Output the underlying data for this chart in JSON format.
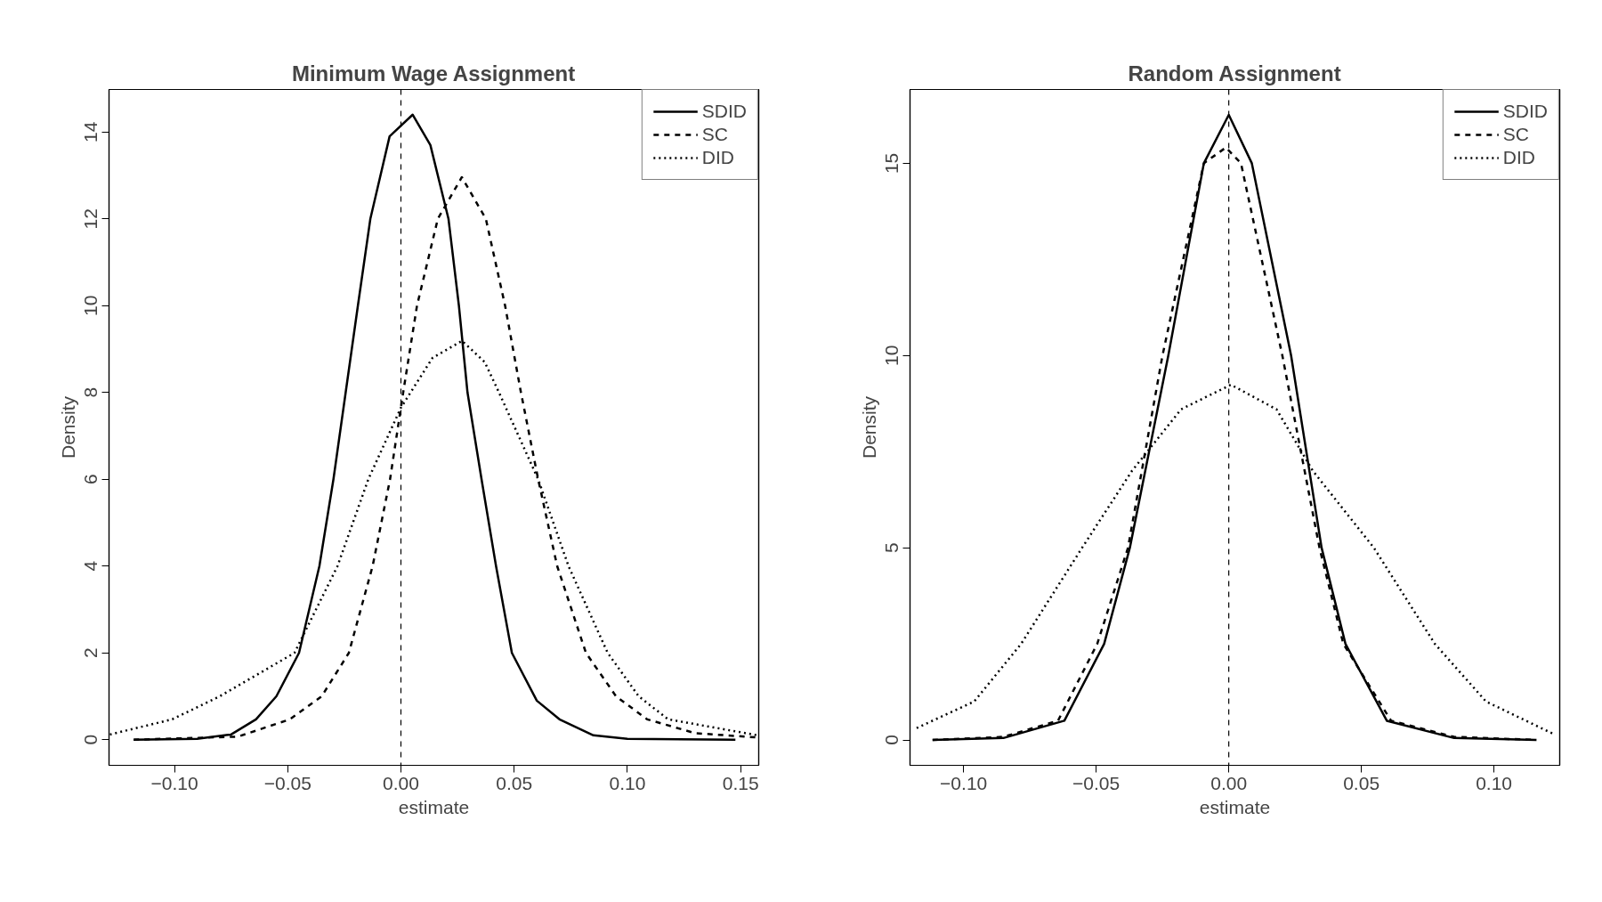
{
  "chart_data": [
    {
      "type": "line",
      "title": "Minimum Wage Assignment",
      "xlabel": "estimate",
      "ylabel": "Density",
      "xlim": [
        -0.1289,
        0.158
      ],
      "ylim": [
        -0.59,
        14.98
      ],
      "xticks": [
        {
          "value": -0.1,
          "label": "−0.10"
        },
        {
          "value": -0.05,
          "label": "−0.05"
        },
        {
          "value": 0,
          "label": "0.00"
        },
        {
          "value": 0.05,
          "label": "0.05"
        },
        {
          "value": 0.1,
          "label": "0.10"
        },
        {
          "value": 0.15,
          "label": "0.15"
        }
      ],
      "yticks": [
        0,
        2,
        4,
        6,
        8,
        10,
        12,
        14
      ],
      "grid": false,
      "legend": "top right",
      "marker": "none",
      "ref_lines": [
        {
          "axis": "x",
          "value": 0,
          "line_style": "dashed",
          "color": "#000000"
        }
      ],
      "series": [
        {
          "name": "SDID",
          "color": "#000000",
          "line_style": "solid",
          "x": [
            -0.118,
            -0.09,
            -0.075,
            -0.064,
            -0.055,
            -0.045,
            -0.036,
            -0.0298,
            -0.0244,
            -0.019,
            -0.0135,
            -0.005,
            0.0052,
            0.013,
            0.021,
            0.0256,
            0.0294,
            0.0356,
            0.042,
            0.049,
            0.06,
            0.07,
            0.085,
            0.1,
            0.1477
          ],
          "values": [
            0,
            0.02,
            0.12,
            0.47,
            1.0,
            2.0,
            4.0,
            6.0,
            8.0,
            10.0,
            12.0,
            13.9,
            14.4,
            13.7,
            12.0,
            10.0,
            8.0,
            6.0,
            4.0,
            2.0,
            0.9,
            0.47,
            0.1,
            0.02,
            0
          ]
        },
        {
          "name": "SC",
          "color": "#000000",
          "line_style": "dashed",
          "x": [
            -0.118,
            -0.072,
            -0.049,
            -0.035,
            -0.023,
            -0.0125,
            -0.0048,
            0.001,
            0.0071,
            0.0163,
            0.0269,
            0.0375,
            0.046,
            0.053,
            0.0606,
            0.069,
            0.0817,
            0.095,
            0.1087,
            0.13,
            0.1577
          ],
          "values": [
            0,
            0.07,
            0.47,
            1.0,
            2.0,
            4.0,
            6.0,
            8.0,
            10.0,
            12.0,
            12.96,
            12.0,
            10.0,
            8.0,
            6.0,
            4.0,
            2.0,
            1.0,
            0.47,
            0.15,
            0.05
          ]
        },
        {
          "name": "DID",
          "color": "#000000",
          "line_style": "dotted",
          "x": [
            -0.1285,
            -0.101,
            -0.08,
            -0.047,
            -0.028,
            -0.0144,
            0,
            0.014,
            0.027,
            0.037,
            0.0433,
            0.0606,
            0.074,
            0.0913,
            0.105,
            0.118,
            0.1577
          ],
          "values": [
            0.12,
            0.47,
            1.0,
            2.0,
            4.0,
            6.0,
            7.65,
            8.8,
            9.19,
            8.7,
            8.0,
            6.0,
            4.0,
            2.0,
            1.0,
            0.47,
            0.1
          ]
        }
      ]
    },
    {
      "type": "line",
      "title": "Random Assignment",
      "xlabel": "estimate",
      "ylabel": "Density",
      "xlim": [
        -0.1202,
        0.1248
      ],
      "ylim": [
        -0.66,
        16.92
      ],
      "xticks": [
        {
          "value": -0.1,
          "label": "−0.10"
        },
        {
          "value": -0.05,
          "label": "−0.05"
        },
        {
          "value": 0,
          "label": "0.00"
        },
        {
          "value": 0.05,
          "label": "0.05"
        },
        {
          "value": 0.1,
          "label": "0.10"
        }
      ],
      "yticks": [
        0,
        5,
        10,
        15
      ],
      "grid": false,
      "legend": "top right",
      "marker": "none",
      "ref_lines": [
        {
          "axis": "x",
          "value": 0,
          "line_style": "dashed",
          "color": "#000000"
        }
      ],
      "series": [
        {
          "name": "SDID",
          "color": "#000000",
          "line_style": "solid",
          "x": [
            -0.1117,
            -0.085,
            -0.062,
            -0.047,
            -0.0373,
            -0.0228,
            -0.0094,
            0,
            0.0087,
            0.0235,
            0.035,
            0.044,
            0.0596,
            0.085,
            0.116
          ],
          "values": [
            0,
            0.05,
            0.5,
            2.5,
            5.0,
            10.0,
            15.0,
            16.26,
            15.0,
            10.0,
            5.0,
            2.5,
            0.5,
            0.05,
            0
          ]
        },
        {
          "name": "SC",
          "color": "#000000",
          "line_style": "dashed",
          "x": [
            -0.1117,
            -0.085,
            -0.0644,
            -0.0496,
            -0.038,
            -0.025,
            -0.0094,
            -0.0011,
            0.0046,
            0.0202,
            0.0342,
            0.0432,
            0.0612,
            0.085,
            0.116
          ],
          "values": [
            0,
            0.08,
            0.5,
            2.5,
            5.0,
            10.0,
            15.0,
            15.41,
            15.0,
            10.0,
            5.0,
            2.5,
            0.5,
            0.08,
            0
          ]
        },
        {
          "name": "DID",
          "color": "#000000",
          "line_style": "dotted",
          "x": [
            -0.1177,
            -0.096,
            -0.0783,
            -0.0553,
            -0.0365,
            -0.018,
            0.0008,
            0.018,
            0.0317,
            0.0547,
            0.0777,
            0.097,
            0.122
          ],
          "values": [
            0.31,
            1.0,
            2.5,
            5.0,
            7.0,
            8.6,
            9.24,
            8.6,
            7.0,
            5.0,
            2.5,
            1.0,
            0.17
          ]
        }
      ]
    }
  ]
}
